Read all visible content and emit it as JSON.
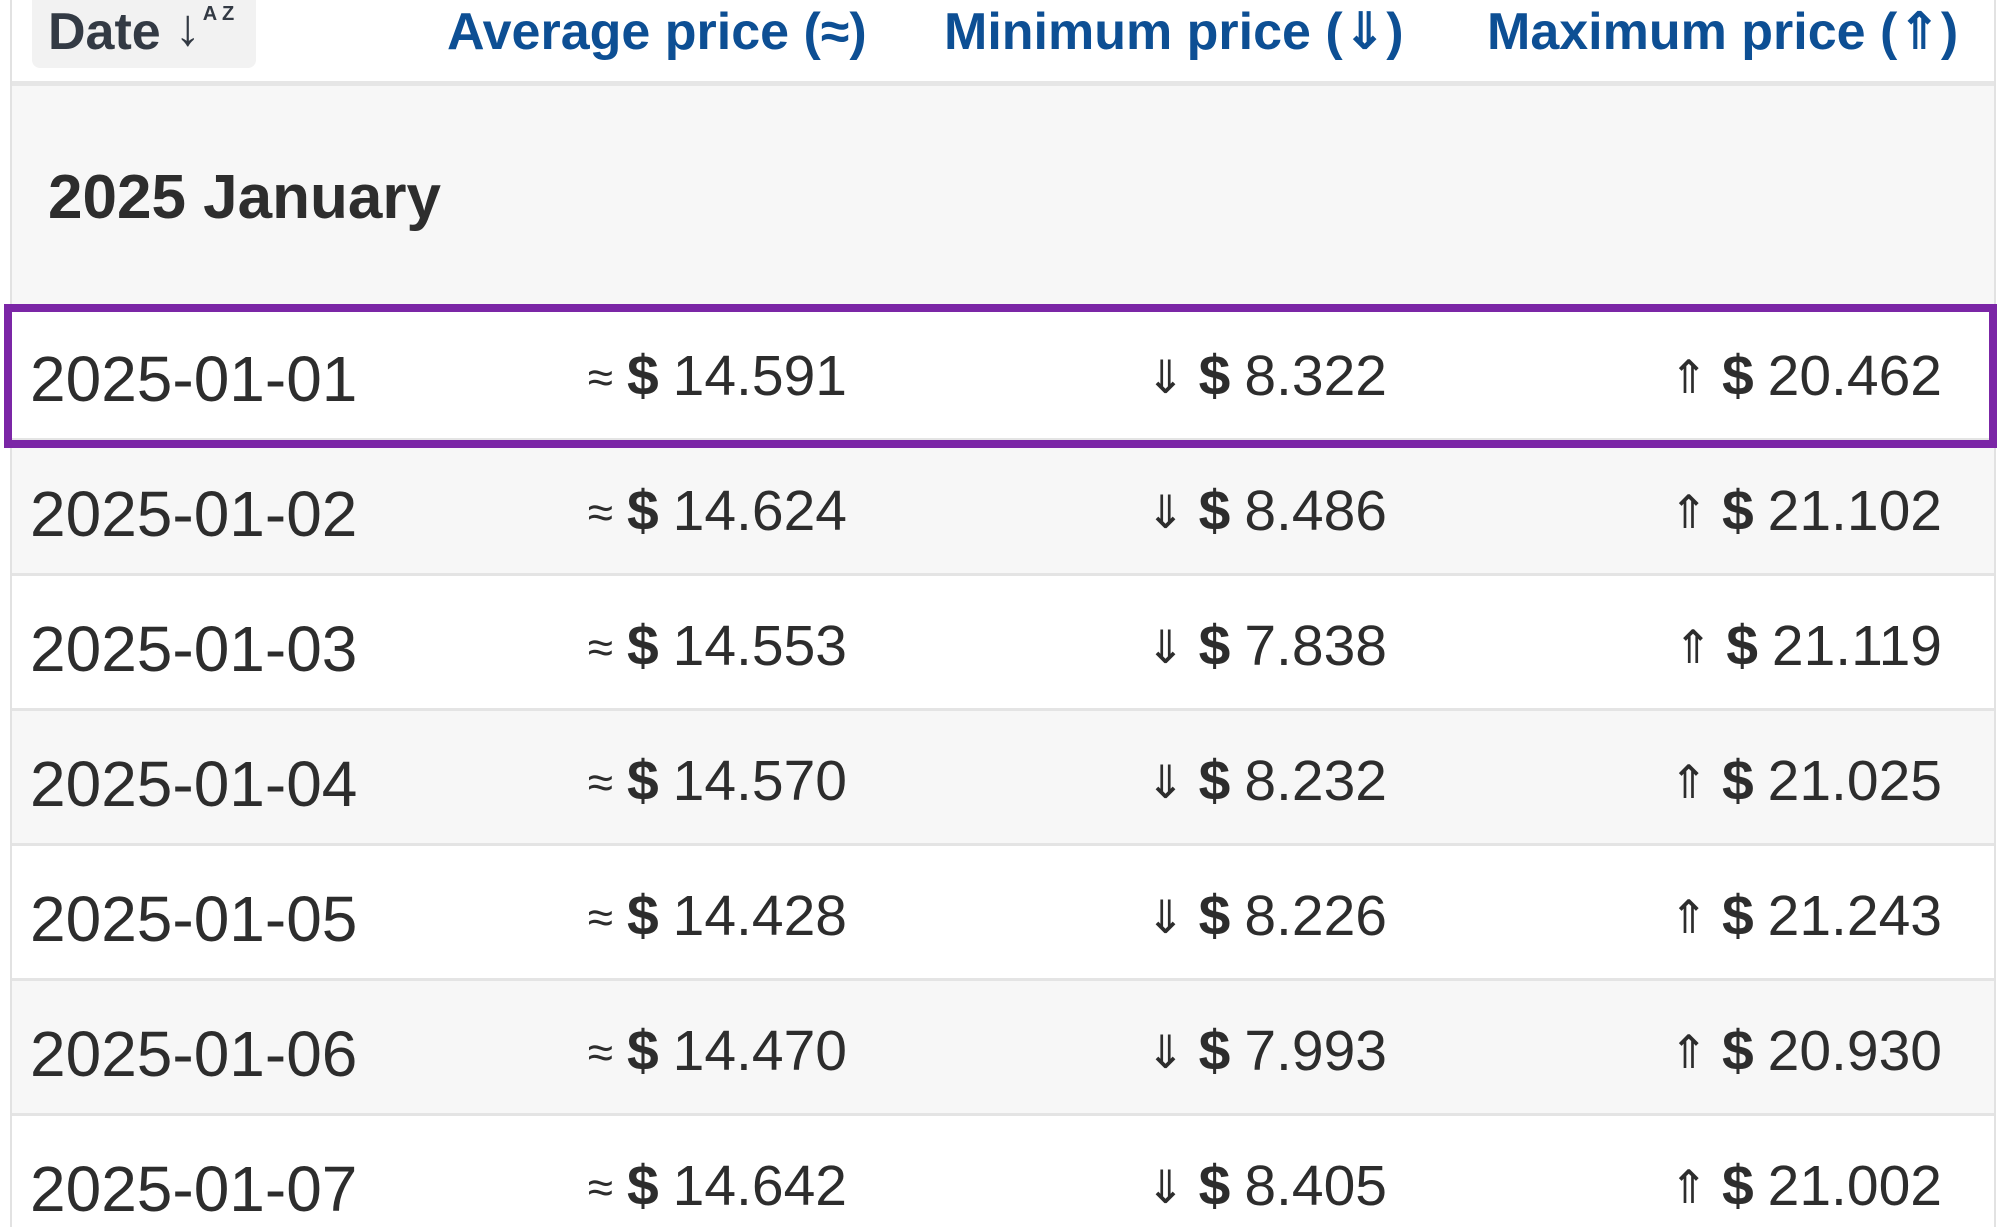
{
  "header": {
    "date_label": "Date",
    "date_sort_arrow": "↓",
    "date_sort_letters": "A Z",
    "average_label": "Average price (≈)",
    "minimum_label": "Minimum price (⇓)",
    "maximum_label": "Maximum price (⇑)"
  },
  "month_title": "2025 January",
  "currency_symbol": "$",
  "symbols": {
    "average": "≈",
    "minimum": "⇓",
    "maximum": "⇑"
  },
  "rows": [
    {
      "date": "2025-01-01",
      "average": "14.591",
      "minimum": "8.322",
      "maximum": "20.462"
    },
    {
      "date": "2025-01-02",
      "average": "14.624",
      "minimum": "8.486",
      "maximum": "21.102"
    },
    {
      "date": "2025-01-03",
      "average": "14.553",
      "minimum": "7.838",
      "maximum": "21.119"
    },
    {
      "date": "2025-01-04",
      "average": "14.570",
      "minimum": "8.232",
      "maximum": "21.025"
    },
    {
      "date": "2025-01-05",
      "average": "14.428",
      "minimum": "8.226",
      "maximum": "21.243"
    },
    {
      "date": "2025-01-06",
      "average": "14.470",
      "minimum": "7.993",
      "maximum": "20.930"
    },
    {
      "date": "2025-01-07",
      "average": "14.642",
      "minimum": "8.405",
      "maximum": "21.002"
    }
  ],
  "colors": {
    "header_link": "#0d4f94",
    "highlight": "#7b26a6",
    "text": "#2d2d2d"
  }
}
